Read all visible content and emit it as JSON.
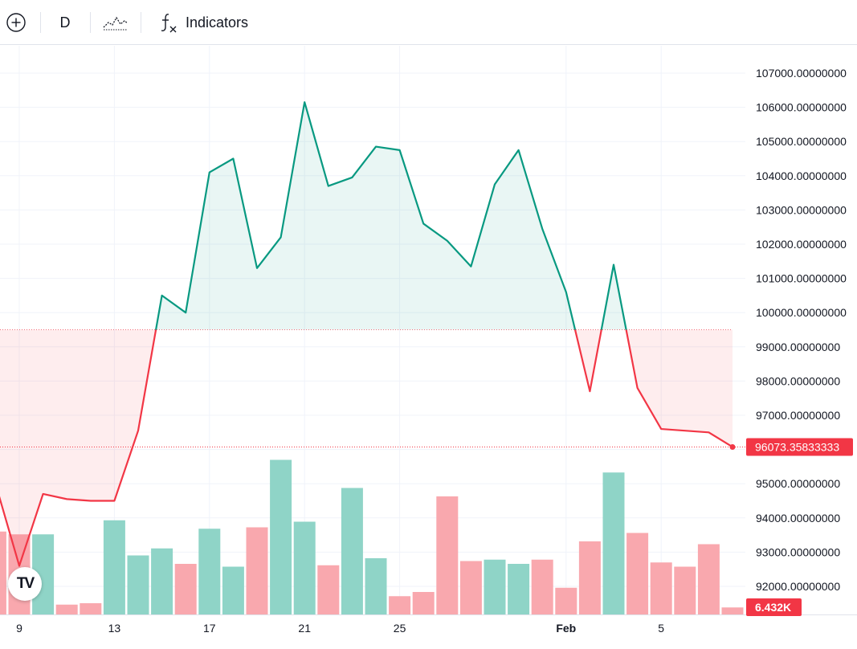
{
  "toolbar": {
    "add_icon": "plus-circle-icon",
    "interval_label": "D",
    "chart_type_icon": "line-chart-icon",
    "indicators_icon": "fx-icon",
    "indicators_label": "Indicators"
  },
  "logo": {
    "text": "TV"
  },
  "colors": {
    "up": "#089981",
    "down": "#f23645",
    "volume_up": "#8fd4c7",
    "volume_down": "#f9a8ae",
    "grid": "#f0f3fa",
    "axis_text": "#131722"
  },
  "chart_data": {
    "type": "area",
    "baseline": 99500,
    "ylim": [
      91300,
      107700
    ],
    "y_ticks": [
      107000,
      106000,
      105000,
      104000,
      103000,
      102000,
      101000,
      100000,
      99000,
      98000,
      97000,
      96000,
      95000,
      94000,
      93000,
      92000
    ],
    "y_tick_labels": [
      "107000.00000000",
      "106000.00000000",
      "105000.00000000",
      "104000.00000000",
      "103000.00000000",
      "102000.00000000",
      "101000.00000000",
      "100000.00000000",
      "99000.00000000",
      "98000.00000000",
      "97000.00000000",
      "96000.00000000",
      "95000.00000000",
      "94000.00000000",
      "93000.00000000",
      "92000.00000000"
    ],
    "x_tick_labels": [
      {
        "day_index": 0,
        "label": "9"
      },
      {
        "day_index": 4,
        "label": "13"
      },
      {
        "day_index": 8,
        "label": "17"
      },
      {
        "day_index": 12,
        "label": "21"
      },
      {
        "day_index": 16,
        "label": "25"
      },
      {
        "day_index": 23,
        "label": "Feb"
      },
      {
        "day_index": 27,
        "label": "5"
      }
    ],
    "price": {
      "first_day_index": -1,
      "values": [
        95000,
        92600,
        94700,
        94550,
        94500,
        94500,
        96550,
        100500,
        100000,
        104100,
        104500,
        101300,
        102200,
        106150,
        103700,
        103950,
        104850,
        104750,
        102600,
        102100,
        101350,
        103750,
        104750,
        102450,
        100600,
        97700,
        101400,
        97800,
        96600,
        96550,
        96500,
        96073.35833333
      ]
    },
    "volume": {
      "first_day_index": -1,
      "values": [
        2.95,
        2.85,
        2.85,
        0.35,
        0.4,
        3.35,
        2.1,
        2.35,
        1.8,
        3.05,
        1.7,
        3.1,
        5.5,
        3.3,
        1.75,
        4.5,
        2.0,
        0.65,
        0.8,
        4.2,
        1.9,
        1.95,
        1.8,
        1.95,
        0.95,
        2.6,
        5.05,
        2.9,
        1.85,
        1.7,
        2.5,
        0.25
      ],
      "up": [
        false,
        false,
        true,
        false,
        false,
        true,
        true,
        true,
        false,
        true,
        true,
        false,
        true,
        true,
        false,
        true,
        true,
        false,
        false,
        false,
        false,
        true,
        true,
        false,
        false,
        false,
        true,
        false,
        false,
        false,
        false,
        false
      ]
    },
    "last_price_label": "96073.35833333",
    "last_volume_label": "6.432K"
  }
}
